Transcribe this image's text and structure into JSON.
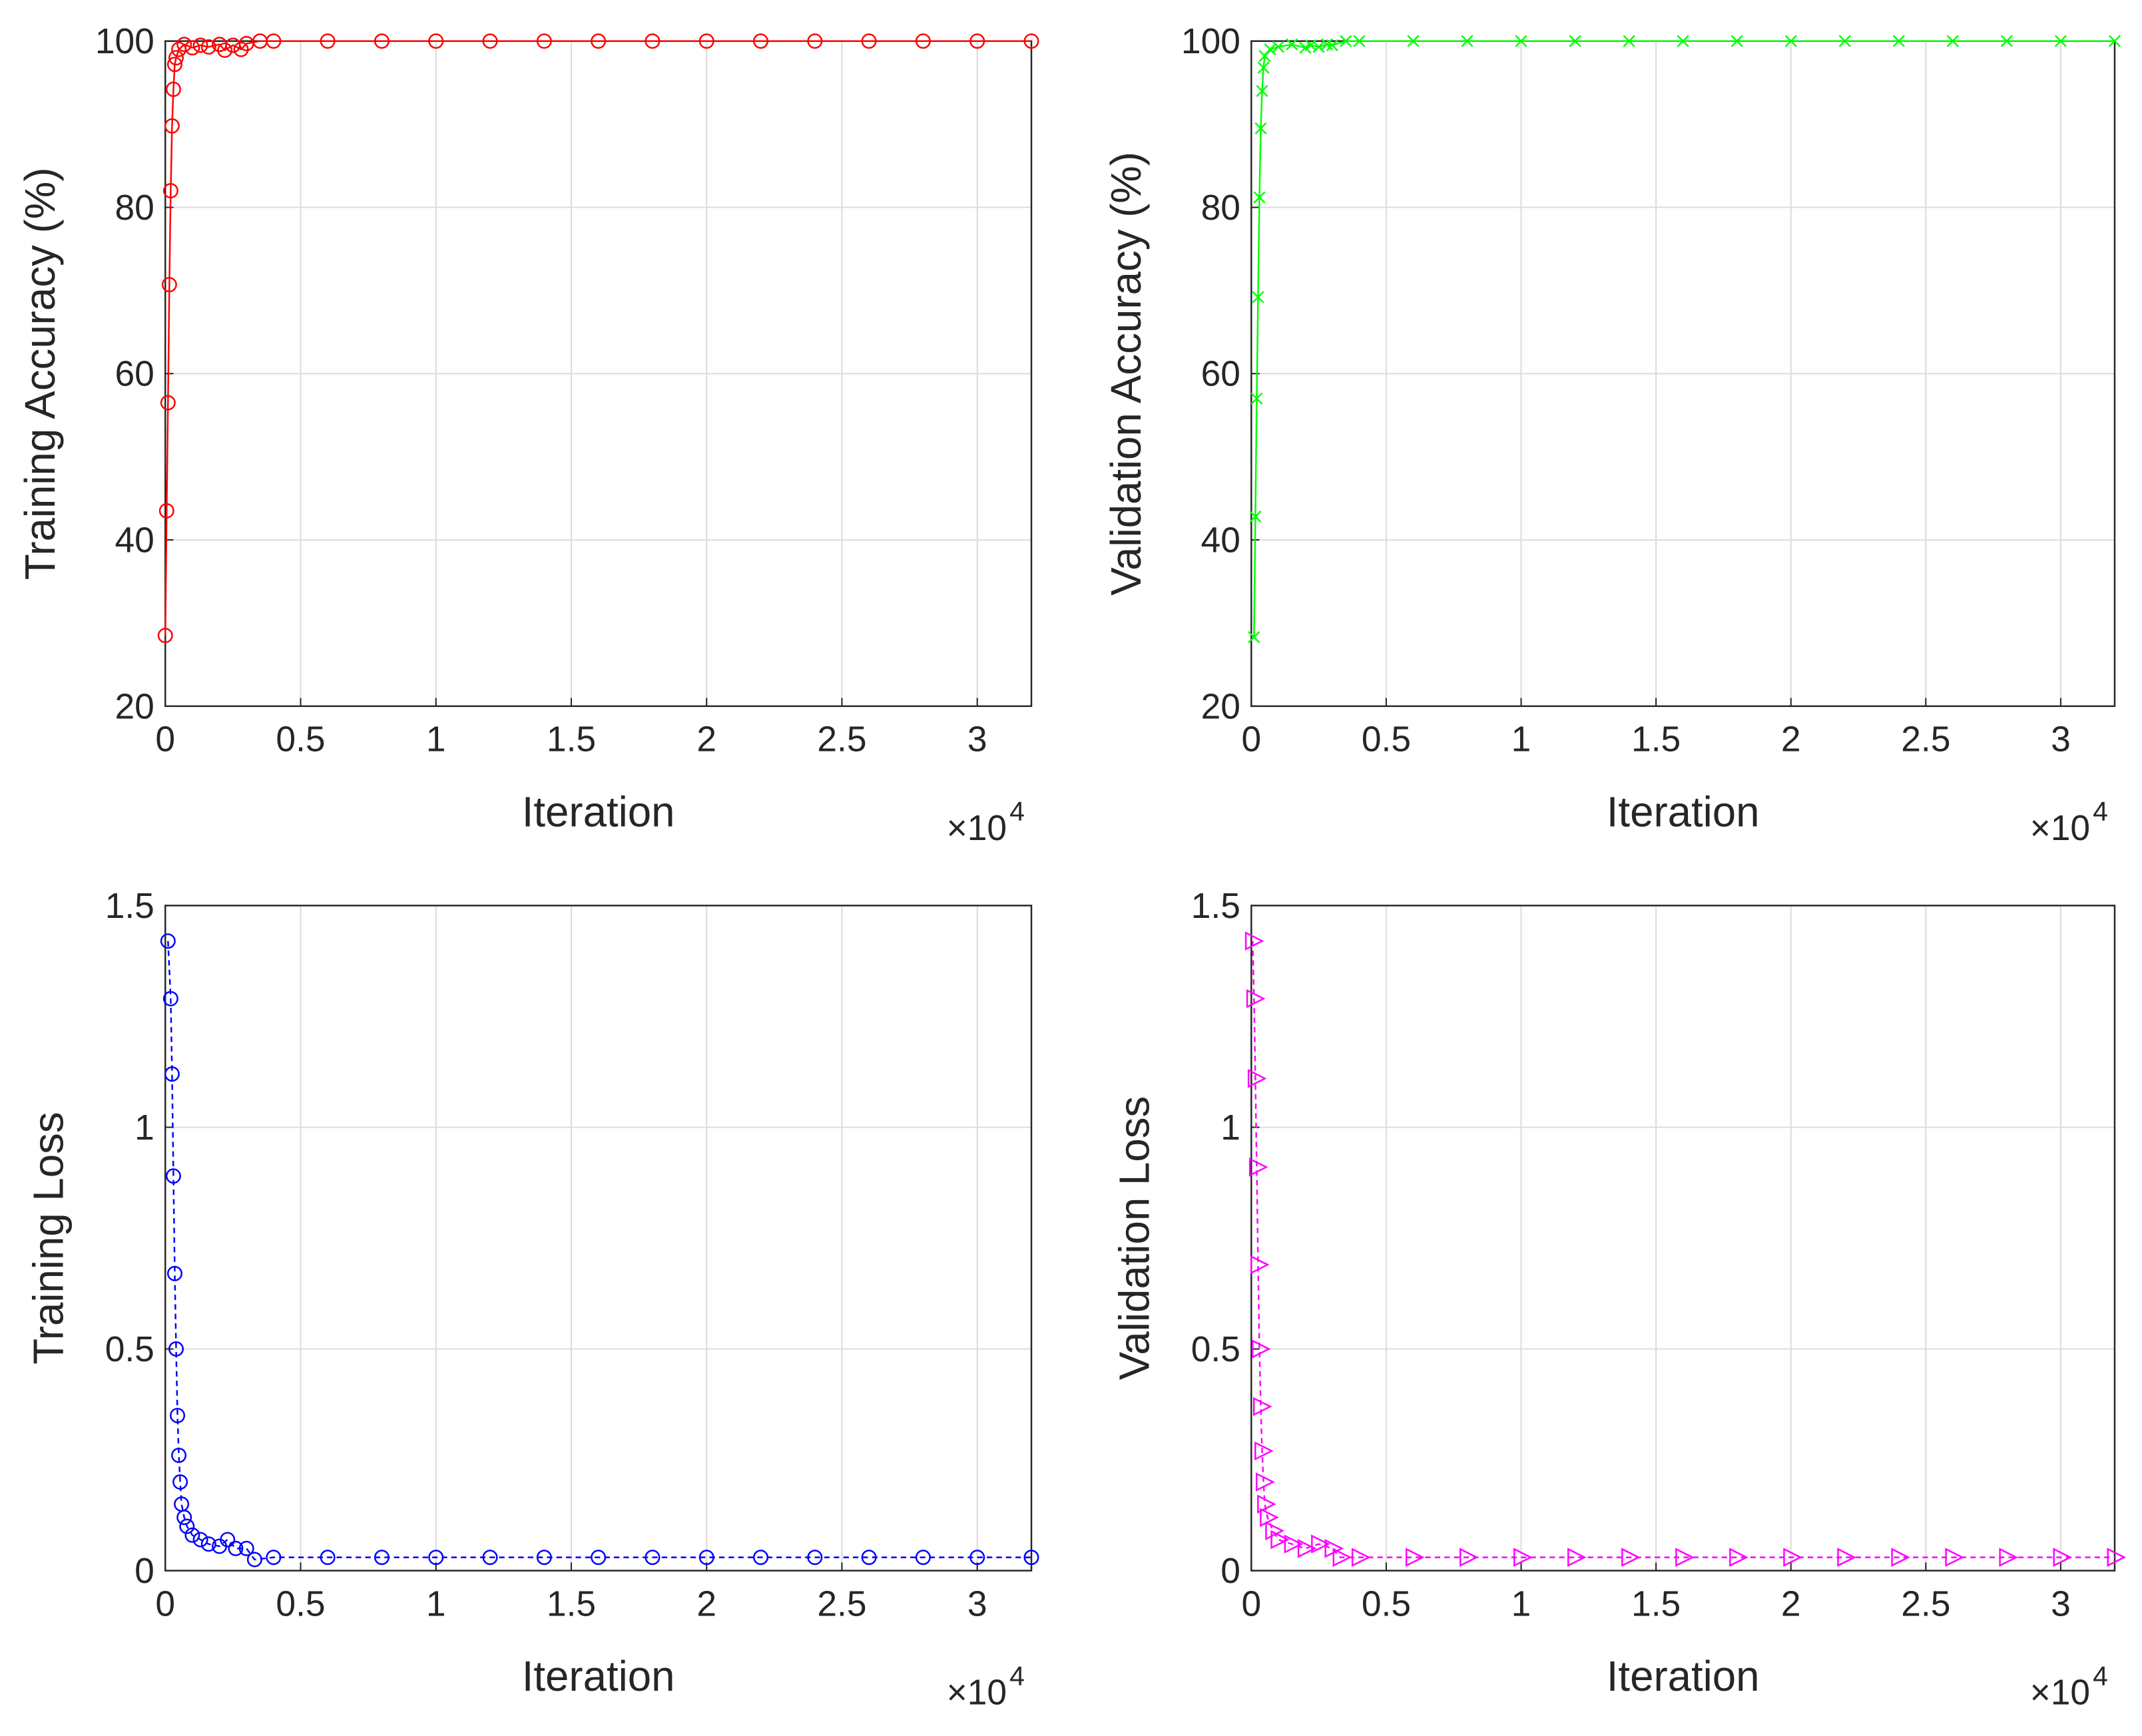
{
  "chart_data": [
    {
      "type": "line",
      "x_label": "Iteration",
      "y_label": "Training Accuracy (%)",
      "x_multiplier": "×10",
      "x_multiplier_exponent": "4",
      "xlim": [
        0,
        3.2
      ],
      "ylim": [
        20,
        100
      ],
      "xticks": [
        0,
        0.5,
        1,
        1.5,
        2,
        2.5,
        3
      ],
      "yticks": [
        20,
        40,
        60,
        80,
        100
      ],
      "grid": true,
      "color": "#ff0000",
      "marker": "circle",
      "line_style": "solid",
      "x": [
        0,
        0.005,
        0.01,
        0.015,
        0.02,
        0.025,
        0.03,
        0.035,
        0.04,
        0.05,
        0.07,
        0.1,
        0.13,
        0.16,
        0.2,
        0.22,
        0.25,
        0.28,
        0.3,
        0.35,
        0.4,
        0.6,
        0.8,
        1,
        1.2,
        1.4,
        1.6,
        1.8,
        2,
        2.2,
        2.4,
        2.6,
        2.8,
        3,
        3.2
      ],
      "values": [
        28.5,
        43.5,
        56.5,
        70.7,
        82,
        89.8,
        94.2,
        97.2,
        98,
        99,
        99.6,
        99.2,
        99.5,
        99.3,
        99.6,
        98.9,
        99.5,
        99,
        99.7,
        100,
        100,
        100,
        100,
        100,
        100,
        100,
        100,
        100,
        100,
        100,
        100,
        100,
        100,
        100,
        100
      ]
    },
    {
      "type": "line",
      "x_label": "Iteration",
      "y_label": "Validation Accuracy (%)",
      "x_multiplier": "×10",
      "x_multiplier_exponent": "4",
      "xlim": [
        0,
        3.2
      ],
      "ylim": [
        20,
        100
      ],
      "xticks": [
        0,
        0.5,
        1,
        1.5,
        2,
        2.5,
        3
      ],
      "yticks": [
        20,
        40,
        60,
        80,
        100
      ],
      "grid": true,
      "color": "#00ff00",
      "marker": "x",
      "line_style": "solid",
      "x": [
        0.01,
        0.015,
        0.02,
        0.025,
        0.03,
        0.035,
        0.04,
        0.045,
        0.05,
        0.07,
        0.1,
        0.15,
        0.2,
        0.22,
        0.25,
        0.28,
        0.3,
        0.35,
        0.4,
        0.6,
        0.8,
        1,
        1.2,
        1.4,
        1.6,
        1.8,
        2,
        2.2,
        2.4,
        2.6,
        2.8,
        3,
        3.2
      ],
      "values": [
        28.3,
        42.8,
        57,
        69.2,
        81.2,
        89.5,
        94,
        96.8,
        98.2,
        99,
        99.3,
        99.6,
        99.2,
        99.5,
        99.3,
        99.6,
        99.5,
        100,
        100,
        100,
        100,
        100,
        100,
        100,
        100,
        100,
        100,
        100,
        100,
        100,
        100,
        100,
        100
      ]
    },
    {
      "type": "line",
      "x_label": "Iteration",
      "y_label": "Training Loss",
      "x_multiplier": "×10",
      "x_multiplier_exponent": "4",
      "xlim": [
        0,
        3.2
      ],
      "ylim": [
        0,
        1.5
      ],
      "xticks": [
        0,
        0.5,
        1,
        1.5,
        2,
        2.5,
        3
      ],
      "yticks": [
        0,
        0.5,
        1,
        1.5
      ],
      "grid": true,
      "color": "#0000ff",
      "marker": "circle",
      "line_style": "dashed",
      "x": [
        0.01,
        0.02,
        0.025,
        0.03,
        0.035,
        0.04,
        0.045,
        0.05,
        0.055,
        0.06,
        0.07,
        0.08,
        0.1,
        0.13,
        0.16,
        0.2,
        0.23,
        0.26,
        0.3,
        0.33,
        0.4,
        0.6,
        0.8,
        1,
        1.2,
        1.4,
        1.6,
        1.8,
        2,
        2.2,
        2.4,
        2.6,
        2.8,
        3,
        3.2
      ],
      "values": [
        1.42,
        1.29,
        1.12,
        0.89,
        0.67,
        0.5,
        0.35,
        0.26,
        0.2,
        0.15,
        0.12,
        0.1,
        0.08,
        0.07,
        0.06,
        0.055,
        0.07,
        0.05,
        0.05,
        0.025,
        0.03,
        0.03,
        0.03,
        0.03,
        0.03,
        0.03,
        0.03,
        0.03,
        0.03,
        0.03,
        0.03,
        0.03,
        0.03,
        0.03,
        0.03
      ]
    },
    {
      "type": "line",
      "x_label": "Iteration",
      "y_label": "Validation Loss",
      "x_multiplier": "×10",
      "x_multiplier_exponent": "4",
      "xlim": [
        0,
        3.2
      ],
      "ylim": [
        0,
        1.5
      ],
      "xticks": [
        0,
        0.5,
        1,
        1.5,
        2,
        2.5,
        3
      ],
      "yticks": [
        0,
        0.5,
        1,
        1.5
      ],
      "grid": true,
      "color": "#ff00ff",
      "marker": "triangle-right",
      "line_style": "dashed",
      "x": [
        0.005,
        0.01,
        0.015,
        0.02,
        0.025,
        0.03,
        0.035,
        0.04,
        0.045,
        0.05,
        0.06,
        0.08,
        0.1,
        0.15,
        0.2,
        0.25,
        0.3,
        0.33,
        0.4,
        0.6,
        0.8,
        1,
        1.2,
        1.4,
        1.6,
        1.8,
        2,
        2.2,
        2.4,
        2.6,
        2.8,
        3,
        3.2
      ],
      "values": [
        1.42,
        1.29,
        1.11,
        0.91,
        0.69,
        0.5,
        0.37,
        0.27,
        0.2,
        0.15,
        0.12,
        0.09,
        0.07,
        0.06,
        0.05,
        0.06,
        0.05,
        0.03,
        0.03,
        0.03,
        0.03,
        0.03,
        0.03,
        0.03,
        0.03,
        0.03,
        0.03,
        0.03,
        0.03,
        0.03,
        0.03,
        0.03,
        0.03
      ]
    }
  ]
}
